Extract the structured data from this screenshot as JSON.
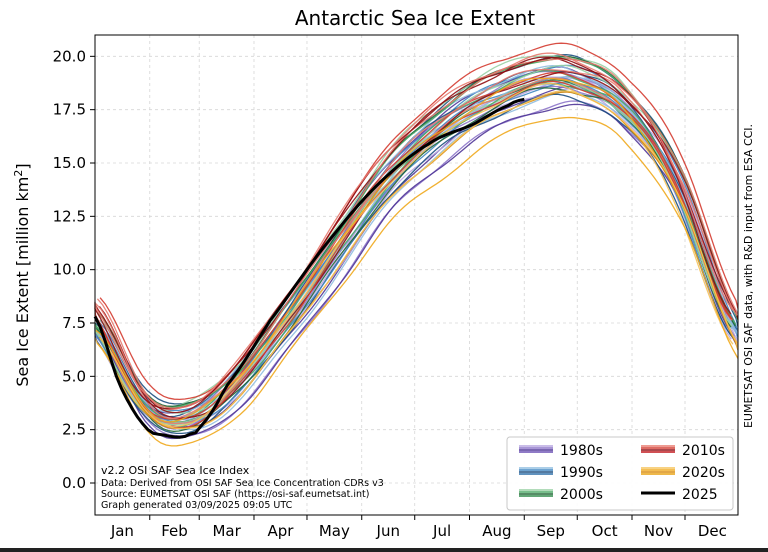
{
  "chart_data": {
    "type": "line",
    "title": "Antarctic Sea Ice Extent",
    "ylabel_main": "Sea Ice Extent [million km",
    "ylabel_sup": "2",
    "ylabel_end": "]",
    "ylim": [
      -1.5,
      21.0
    ],
    "yticks": [
      "0.0",
      "2.5",
      "5.0",
      "7.5",
      "10.0",
      "12.5",
      "15.0",
      "17.5",
      "20.0"
    ],
    "ytick_values": [
      0.0,
      2.5,
      5.0,
      7.5,
      10.0,
      12.5,
      15.0,
      17.5,
      20.0
    ],
    "months": [
      "Jan",
      "Feb",
      "Mar",
      "Apr",
      "May",
      "Jun",
      "Jul",
      "Aug",
      "Sep",
      "Oct",
      "Nov",
      "Dec"
    ],
    "grid": true,
    "right_label": "EUMETSAT OSI SAF data, with R&D input from ESA CCI.",
    "info_lines": [
      "v2.2 OSI SAF Sea Ice Index",
      "Data: Derived from OSI SAF Sea Ice Concentration CDRs v3",
      "Source: EUMETSAT OSI SAF (https://osi-saf.eumetsat.int)",
      "Graph generated 03/09/2025 09:05 UTC"
    ],
    "legend": [
      {
        "label": "1980s",
        "color": "#6a4fb3",
        "shades": [
          "#b7a6e0",
          "#8c74c9",
          "#4f3597"
        ]
      },
      {
        "label": "1990s",
        "color": "#2b6fa8",
        "shades": [
          "#8fbde0",
          "#3f86c2",
          "#1c4f80"
        ]
      },
      {
        "label": "2000s",
        "color": "#2e8a48",
        "shades": [
          "#99d0a4",
          "#4aa865",
          "#1f6634"
        ]
      },
      {
        "label": "2010s",
        "color": "#c0161c",
        "shades": [
          "#e87a6f",
          "#d43b30",
          "#8f0d12"
        ]
      },
      {
        "label": "2020s",
        "color": "#e8a00f",
        "shades": [
          "#f6c35a",
          "#f0a81c",
          "#d98a0a"
        ]
      },
      {
        "label": "2025",
        "color": "#000000",
        "shades": [
          "#000000"
        ]
      }
    ],
    "series_2025": {
      "name": "2025",
      "day": [
        1,
        15,
        30,
        40,
        50,
        55,
        60,
        75,
        100,
        130,
        160,
        190,
        215,
        235,
        245
      ],
      "values": [
        7.8,
        4.6,
        2.6,
        2.25,
        2.15,
        2.3,
        2.6,
        4.5,
        7.6,
        11.0,
        13.9,
        15.9,
        16.8,
        17.7,
        18.0
      ]
    },
    "decade_climatology": {
      "1980s": {
        "day": [
          1,
          30,
          52,
          80,
          110,
          140,
          170,
          200,
          230,
          255,
          275,
          300,
          330,
          365
        ],
        "values": [
          7.1,
          3.4,
          2.8,
          4.4,
          7.4,
          10.8,
          14.2,
          16.4,
          17.9,
          18.6,
          18.6,
          17.4,
          13.9,
          6.7
        ]
      },
      "1990s": {
        "day": [
          1,
          30,
          52,
          80,
          110,
          140,
          170,
          200,
          230,
          255,
          275,
          300,
          330,
          365
        ],
        "values": [
          7.3,
          3.6,
          3.0,
          4.6,
          7.7,
          11.2,
          14.6,
          16.8,
          18.2,
          18.9,
          18.8,
          17.6,
          14.0,
          6.9
        ]
      },
      "2000s": {
        "day": [
          1,
          30,
          52,
          80,
          110,
          140,
          170,
          200,
          230,
          255,
          275,
          300,
          330,
          365
        ],
        "values": [
          7.6,
          3.7,
          3.1,
          4.7,
          7.8,
          11.4,
          14.8,
          17.0,
          18.5,
          19.2,
          19.0,
          17.9,
          14.3,
          7.4
        ]
      },
      "2010s": {
        "day": [
          1,
          30,
          52,
          80,
          110,
          140,
          170,
          200,
          230,
          255,
          275,
          300,
          330,
          365
        ],
        "values": [
          8.4,
          4.0,
          3.3,
          5.0,
          8.2,
          11.9,
          15.3,
          17.5,
          18.9,
          19.6,
          19.4,
          18.3,
          14.7,
          7.8
        ]
      },
      "2020s": {
        "day": [
          1,
          30,
          52,
          80,
          110,
          140,
          170,
          200,
          230,
          255,
          275,
          300,
          330,
          365
        ],
        "values": [
          6.8,
          3.1,
          2.5,
          4.1,
          7.2,
          10.6,
          13.7,
          15.8,
          17.4,
          18.2,
          18.0,
          16.8,
          13.1,
          6.2
        ]
      }
    }
  }
}
